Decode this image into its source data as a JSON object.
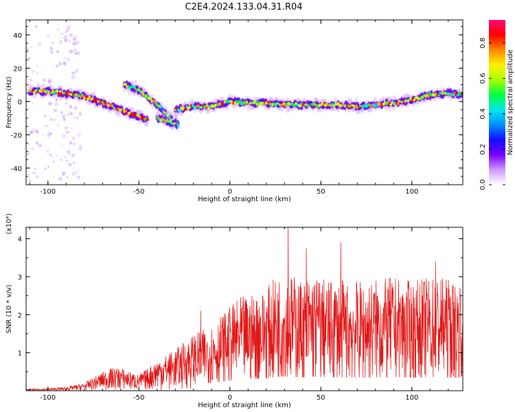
{
  "title": "C2E4.2024.133.04.31.R04",
  "colors": {
    "snr_line": "#e01515",
    "frame": "#000000"
  },
  "colormap": [
    "#ffffff",
    "#cc99ff",
    "#7a00ff",
    "#1010ff",
    "#0090ff",
    "#00e8e8",
    "#00ff40",
    "#aaff00",
    "#ffee00",
    "#ff8800",
    "#ff0000",
    "#ff0a78"
  ],
  "chart_data": [
    {
      "type": "heatmap",
      "xlabel": "Height of straight line (km)",
      "ylabel": "Frequency (Hz)",
      "xlim": [
        -112,
        128
      ],
      "ylim": [
        -50,
        49
      ],
      "xticks": [
        "-100",
        "-50",
        "0",
        "50",
        "100"
      ],
      "xtick_values": [
        -100,
        -50,
        0,
        50,
        100
      ],
      "yticks": [
        "40",
        "20",
        "0",
        "-20",
        "-40"
      ],
      "ytick_values": [
        40,
        20,
        0,
        -20,
        -40
      ],
      "colorbar": {
        "label": "Normalized spectral amplitude",
        "range": [
          0,
          0.93
        ],
        "ticks": [
          "0.0",
          "0.2",
          "0.4",
          "0.6",
          "0.8"
        ],
        "tick_values": [
          0.0,
          0.2,
          0.4,
          0.6,
          0.8
        ]
      },
      "traces": [
        {
          "name": "",
          "points": [
            [
              -110,
              6
            ],
            [
              -100,
              6
            ],
            [
              -90,
              5
            ],
            [
              -80,
              3
            ],
            [
              -70,
              -1
            ],
            [
              -60,
              -5
            ],
            [
              -50,
              -9
            ],
            [
              -45,
              -11
            ]
          ],
          "amplitude": 0.6
        },
        {
          "name": "",
          "points": [
            [
              -58,
              10
            ],
            [
              -50,
              7
            ],
            [
              -43,
              1
            ],
            [
              -38,
              -4
            ],
            [
              -33,
              -10
            ],
            [
              -28,
              -15
            ]
          ],
          "amplitude": 0.45
        },
        {
          "name": "",
          "points": [
            [
              -40,
              -10
            ],
            [
              -34,
              -12
            ],
            [
              -30,
              -14
            ]
          ],
          "amplitude": 0.5
        },
        {
          "name": "",
          "points": [
            [
              -30,
              -5
            ],
            [
              -20,
              -3
            ],
            [
              -10,
              -3
            ],
            [
              0,
              0
            ],
            [
              10,
              -1
            ],
            [
              20,
              -1
            ],
            [
              30,
              -2
            ],
            [
              40,
              -2
            ],
            [
              50,
              -2
            ],
            [
              60,
              -2
            ],
            [
              70,
              -3
            ],
            [
              80,
              -2
            ],
            [
              90,
              -1
            ],
            [
              100,
              1
            ],
            [
              110,
              4
            ],
            [
              120,
              5
            ],
            [
              128,
              4
            ]
          ],
          "amplitude": 0.55
        }
      ]
    },
    {
      "type": "line",
      "xlabel": "Height of straight line (km)",
      "ylabel": "SNR (10 * v/v)",
      "y_multiplier": "(x10⁴)",
      "xlim": [
        -112,
        128
      ],
      "ylim": [
        0,
        4.3
      ],
      "xticks": [
        "-100",
        "-50",
        "0",
        "50",
        "100"
      ],
      "xtick_values": [
        -100,
        -50,
        0,
        50,
        100
      ],
      "yticks": [
        "4",
        "3",
        "2",
        "1"
      ],
      "ytick_values": [
        4,
        3,
        2,
        1
      ],
      "envelope": {
        "x": [
          -112,
          -100,
          -90,
          -80,
          -75,
          -70,
          -65,
          -60,
          -55,
          -50,
          -45,
          -40,
          -35,
          -30,
          -25,
          -20,
          -15,
          -10,
          -5,
          0,
          5,
          10,
          15,
          20,
          25,
          30,
          35,
          40,
          45,
          50,
          55,
          60,
          65,
          70,
          75,
          80,
          85,
          90,
          95,
          100,
          105,
          110,
          115,
          120,
          125,
          128
        ],
        "y": [
          0.04,
          0.06,
          0.1,
          0.2,
          0.35,
          0.5,
          0.6,
          0.62,
          0.5,
          0.42,
          0.6,
          0.85,
          0.95,
          1.1,
          1.3,
          1.5,
          1.6,
          1.75,
          2.0,
          2.2,
          2.45,
          2.5,
          2.6,
          2.7,
          3.0,
          3.1,
          3.05,
          2.9,
          3.1,
          3.0,
          2.9,
          2.95,
          2.85,
          2.9,
          2.85,
          2.95,
          2.95,
          3.0,
          2.9,
          2.9,
          2.95,
          3.0,
          3.05,
          2.95,
          2.85,
          3.2
        ]
      },
      "peaks": [
        [
          32,
          4.3
        ],
        [
          42,
          3.75
        ],
        [
          61,
          3.9
        ],
        [
          -16,
          2.1
        ],
        [
          113,
          3.4
        ]
      ]
    }
  ]
}
